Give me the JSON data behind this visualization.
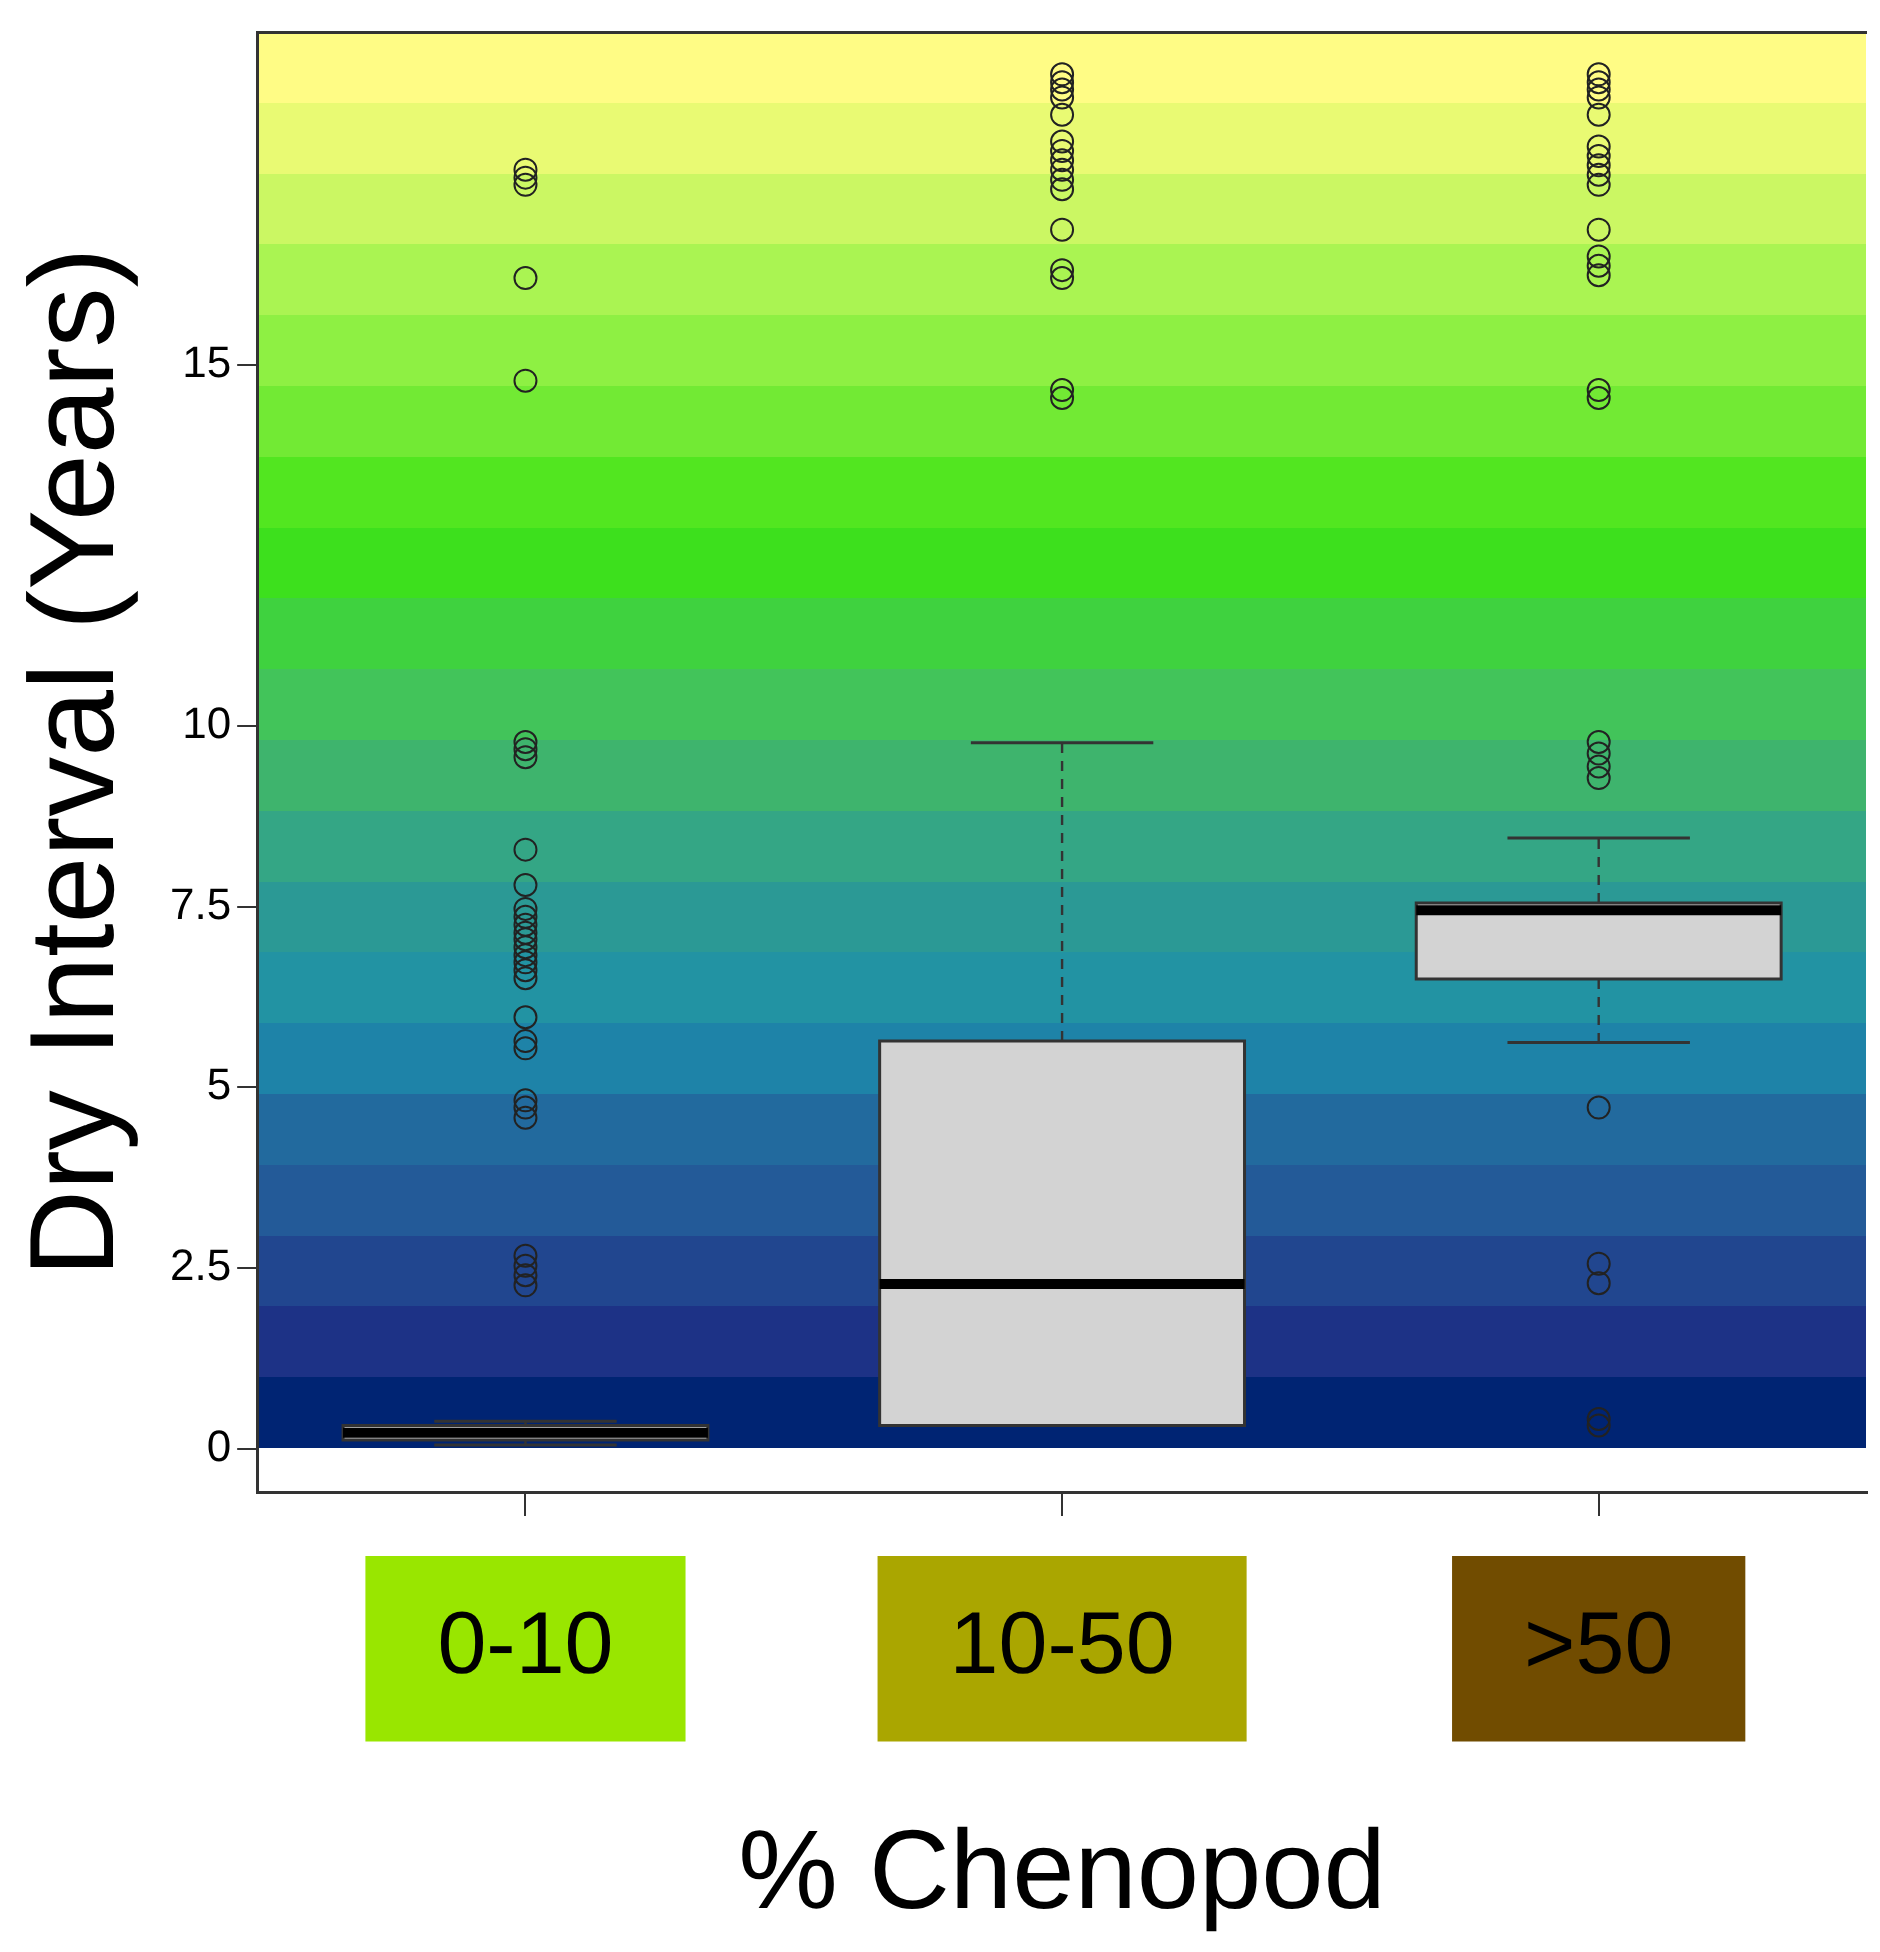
{
  "chart_data": {
    "type": "box",
    "xlabel": "% Chenopod",
    "ylabel": "Dry Interval (Years)",
    "categories": [
      "0-10",
      "10-50",
      ">50"
    ],
    "ylim": [
      -0.6,
      19.6
    ],
    "yticks": [
      0,
      2.5,
      5,
      7.5,
      10,
      15
    ],
    "marker": "circle",
    "boxes": [
      {
        "low": 0.05,
        "q1": 0.12,
        "median": 0.22,
        "q3": 0.32,
        "high": 0.38,
        "outliers": [
          17.7,
          17.59,
          17.49,
          16.2,
          14.78,
          9.78,
          9.68,
          9.57,
          8.29,
          7.8,
          7.47,
          7.36,
          7.25,
          7.14,
          7.05,
          6.94,
          6.83,
          6.73,
          6.62,
          6.51,
          5.97,
          5.64,
          5.54,
          4.82,
          4.72,
          4.58,
          2.67,
          2.53,
          2.4,
          2.26
        ]
      },
      {
        "low": 0.32,
        "q1": 0.32,
        "median": 2.28,
        "q3": 5.64,
        "high": 9.77,
        "outliers": [
          19.02,
          18.91,
          18.81,
          18.7,
          18.46,
          18.09,
          17.96,
          17.83,
          17.7,
          17.56,
          17.43,
          16.87,
          16.31,
          16.2,
          14.65,
          14.54
        ]
      },
      {
        "low": 5.62,
        "q1": 6.5,
        "median": 7.45,
        "q3": 7.55,
        "high": 8.45,
        "outliers": [
          19.02,
          18.91,
          18.81,
          18.7,
          18.46,
          18.02,
          17.89,
          17.76,
          17.63,
          17.49,
          16.87,
          16.5,
          16.37,
          16.24,
          14.65,
          14.54,
          9.78,
          9.62,
          9.44,
          9.28,
          4.72,
          2.56,
          2.29,
          0.41,
          0.32
        ]
      }
    ]
  }
}
